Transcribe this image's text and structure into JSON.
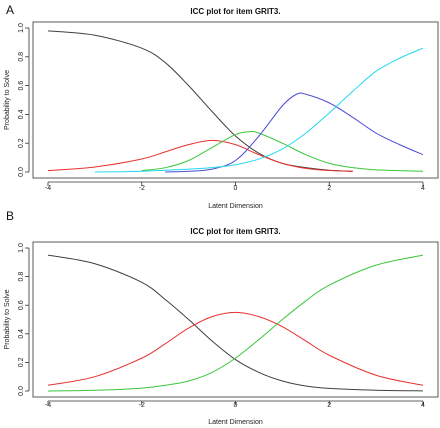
{
  "chart_data": [
    {
      "panel_label": "A",
      "type": "line",
      "title": "ICC plot for item GRIT3.",
      "xlabel": "Latent Dimension",
      "ylabel": "Probability to Solve",
      "xlim": [
        -4,
        4
      ],
      "ylim": [
        0,
        1
      ],
      "xticks": [
        "-4",
        "-2",
        "0",
        "2",
        "4"
      ],
      "yticks": [
        "0.0",
        "0.2",
        "0.4",
        "0.6",
        "0.8",
        "1.0"
      ],
      "grid": false,
      "legend": "none",
      "series": [
        {
          "color": "#404040",
          "x": [
            -4,
            -3,
            -2,
            -1.5,
            -1,
            -0.5,
            0,
            0.5,
            1,
            1.5,
            2,
            2.5
          ],
          "y": [
            0.98,
            0.95,
            0.86,
            0.76,
            0.6,
            0.42,
            0.25,
            0.13,
            0.06,
            0.03,
            0.012,
            0.005
          ]
        },
        {
          "color": "#e8322e",
          "x": [
            -4,
            -3,
            -2,
            -1.5,
            -1,
            -0.5,
            0,
            0.5,
            1,
            1.5,
            2,
            2.5
          ],
          "y": [
            0.01,
            0.035,
            0.09,
            0.14,
            0.19,
            0.22,
            0.19,
            0.12,
            0.06,
            0.025,
            0.01,
            0.004
          ]
        },
        {
          "color": "#3cc63c",
          "x": [
            -2,
            -1.5,
            -1,
            -0.5,
            0,
            0.3,
            0.5,
            1,
            1.5,
            2,
            2.5,
            3,
            4
          ],
          "y": [
            0.01,
            0.03,
            0.08,
            0.17,
            0.26,
            0.28,
            0.27,
            0.2,
            0.12,
            0.06,
            0.03,
            0.015,
            0.005
          ]
        },
        {
          "color": "#4b4bd8",
          "x": [
            -1.5,
            -1,
            -0.5,
            0,
            0.5,
            1,
            1.3,
            1.5,
            2,
            2.5,
            3,
            3.5,
            4
          ],
          "y": [
            0.0,
            0.005,
            0.02,
            0.08,
            0.25,
            0.46,
            0.54,
            0.54,
            0.48,
            0.38,
            0.27,
            0.19,
            0.12
          ]
        },
        {
          "color": "#22d8ee",
          "x": [
            -3,
            -2,
            -1,
            -0.5,
            0,
            0.5,
            1,
            1.5,
            2,
            2.5,
            3,
            3.5,
            4
          ],
          "y": [
            0.0,
            0.005,
            0.02,
            0.03,
            0.05,
            0.09,
            0.16,
            0.27,
            0.41,
            0.56,
            0.7,
            0.79,
            0.86
          ]
        }
      ]
    },
    {
      "panel_label": "B",
      "type": "line",
      "title": "ICC plot for item GRIT3.",
      "xlabel": "Latent Dimension",
      "ylabel": "Probability to Solve",
      "xlim": [
        -4,
        4
      ],
      "ylim": [
        0,
        1
      ],
      "xticks": [
        "-4",
        "-2",
        "0",
        "2",
        "4"
      ],
      "yticks": [
        "0.0",
        "0.2",
        "0.4",
        "0.6",
        "0.8",
        "1.0"
      ],
      "grid": false,
      "legend": "none",
      "series": [
        {
          "color": "#404040",
          "x": [
            -4,
            -3,
            -2,
            -1.5,
            -1,
            -0.5,
            0,
            0.5,
            1,
            1.5,
            2,
            3,
            4
          ],
          "y": [
            0.95,
            0.89,
            0.76,
            0.64,
            0.5,
            0.35,
            0.22,
            0.13,
            0.07,
            0.035,
            0.018,
            0.005,
            0.001
          ]
        },
        {
          "color": "#e8322e",
          "x": [
            -4,
            -3,
            -2,
            -1.5,
            -1,
            -0.5,
            0,
            0.5,
            1,
            1.5,
            2,
            3,
            4
          ],
          "y": [
            0.04,
            0.1,
            0.23,
            0.33,
            0.44,
            0.52,
            0.55,
            0.52,
            0.45,
            0.35,
            0.25,
            0.11,
            0.04
          ]
        },
        {
          "color": "#3cc63c",
          "x": [
            -4,
            -3,
            -2,
            -1.5,
            -1,
            -0.5,
            0,
            0.5,
            1,
            1.5,
            2,
            3,
            4
          ],
          "y": [
            0.0,
            0.005,
            0.02,
            0.04,
            0.07,
            0.13,
            0.23,
            0.36,
            0.5,
            0.63,
            0.74,
            0.88,
            0.95
          ]
        }
      ]
    }
  ]
}
